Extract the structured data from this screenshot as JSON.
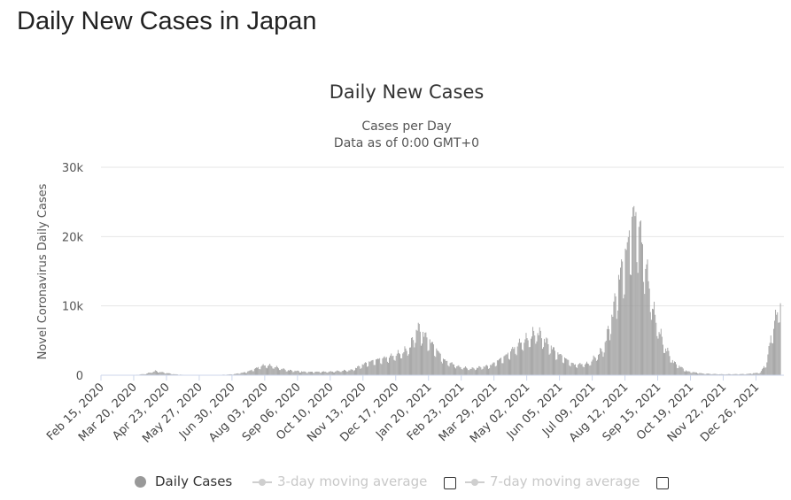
{
  "page": {
    "title": "Daily New Cases in Japan"
  },
  "chart_data": {
    "type": "bar",
    "title": "Daily New Cases",
    "subtitle_lines": [
      "Cases per Day",
      "Data as of 0:00 GMT+0"
    ],
    "ylabel": "Novel Coronavirus Daily Cases",
    "xlabel": "",
    "ylim": [
      0,
      30000
    ],
    "y_ticks": [
      0,
      10000,
      20000,
      30000
    ],
    "y_tick_labels": [
      "0",
      "10k",
      "20k",
      "30k"
    ],
    "x_tick_labels": [
      "Feb 15, 2020",
      "Mar 20, 2020",
      "Apr 23, 2020",
      "May 27, 2020",
      "Jun 30, 2020",
      "Aug 03, 2020",
      "Sep 06, 2020",
      "Oct 10, 2020",
      "Nov 13, 2020",
      "Dec 17, 2020",
      "Jan 20, 2021",
      "Feb 23, 2021",
      "Mar 29, 2021",
      "May 02, 2021",
      "Jun 05, 2021",
      "Jul 09, 2021",
      "Aug 12, 2021",
      "Sep 15, 2021",
      "Oct 19, 2021",
      "Nov 22, 2021",
      "Dec 26, 2021"
    ],
    "x_start": "2020-02-15",
    "x_end": "2022-01-23",
    "grid": true,
    "legend_position": "bottom",
    "bar_color": "#999999",
    "series_profile": [
      [
        "2020-02-15",
        0
      ],
      [
        "2020-03-20",
        40
      ],
      [
        "2020-04-01",
        200
      ],
      [
        "2020-04-11",
        650
      ],
      [
        "2020-04-20",
        400
      ],
      [
        "2020-05-01",
        150
      ],
      [
        "2020-05-15",
        20
      ],
      [
        "2020-06-15",
        40
      ],
      [
        "2020-07-01",
        150
      ],
      [
        "2020-07-15",
        500
      ],
      [
        "2020-08-01",
        1500
      ],
      [
        "2020-08-08",
        1500
      ],
      [
        "2020-08-25",
        800
      ],
      [
        "2020-09-15",
        500
      ],
      [
        "2020-10-10",
        550
      ],
      [
        "2020-11-01",
        800
      ],
      [
        "2020-11-15",
        1800
      ],
      [
        "2020-11-25",
        2300
      ],
      [
        "2020-12-10",
        2800
      ],
      [
        "2020-12-25",
        3600
      ],
      [
        "2021-01-01",
        4500
      ],
      [
        "2021-01-08",
        7300
      ],
      [
        "2021-01-15",
        6200
      ],
      [
        "2021-01-25",
        4500
      ],
      [
        "2021-02-05",
        2300
      ],
      [
        "2021-02-20",
        1300
      ],
      [
        "2021-03-05",
        1000
      ],
      [
        "2021-03-25",
        1500
      ],
      [
        "2021-04-10",
        3000
      ],
      [
        "2021-04-25",
        5000
      ],
      [
        "2021-05-05",
        5800
      ],
      [
        "2021-05-12",
        6800
      ],
      [
        "2021-05-20",
        5500
      ],
      [
        "2021-06-01",
        3500
      ],
      [
        "2021-06-20",
        1600
      ],
      [
        "2021-07-05",
        1800
      ],
      [
        "2021-07-20",
        4000
      ],
      [
        "2021-07-30",
        9500
      ],
      [
        "2021-08-05",
        14500
      ],
      [
        "2021-08-15",
        20000
      ],
      [
        "2021-08-20",
        24500
      ],
      [
        "2021-08-26",
        23000
      ],
      [
        "2021-09-01",
        18000
      ],
      [
        "2021-09-10",
        10000
      ],
      [
        "2021-09-20",
        5000
      ],
      [
        "2021-10-01",
        2000
      ],
      [
        "2021-10-15",
        600
      ],
      [
        "2021-11-01",
        250
      ],
      [
        "2021-11-20",
        150
      ],
      [
        "2021-12-15",
        180
      ],
      [
        "2021-12-30",
        400
      ],
      [
        "2022-01-06",
        2000
      ],
      [
        "2022-01-10",
        6000
      ],
      [
        "2022-01-14",
        8000
      ],
      [
        "2022-01-20",
        11800
      ]
    ]
  },
  "legend": {
    "items": [
      {
        "label": "Daily Cases",
        "active": true
      },
      {
        "label": "3-day moving average",
        "active": false
      },
      {
        "label": "7-day moving average",
        "active": false
      }
    ]
  }
}
